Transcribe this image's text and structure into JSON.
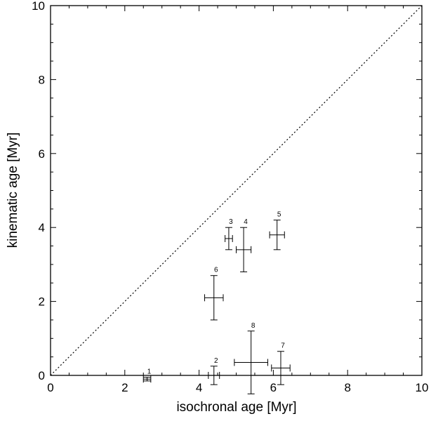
{
  "chart_data": {
    "type": "scatter",
    "title": "",
    "xlabel": "isochronal age [Myr]",
    "ylabel": "kinematic age  [Myr]",
    "xlim": [
      0,
      10
    ],
    "ylim": [
      0,
      10
    ],
    "xticks": [
      "0",
      "2",
      "4",
      "6",
      "8",
      "10"
    ],
    "yticks": [
      "0",
      "2",
      "4",
      "6",
      "8",
      "10"
    ],
    "grid": false,
    "reference_line": {
      "style": "dotted",
      "from": [
        0,
        0
      ],
      "to": [
        10,
        10
      ]
    },
    "points": [
      {
        "label": "1",
        "x": 2.6,
        "y": -0.1,
        "xerr": 0.1,
        "yerr": 0.05
      },
      {
        "label": "2",
        "x": 4.4,
        "y": 0.0,
        "xerr": 0.15,
        "yerr": 0.25
      },
      {
        "label": "3",
        "x": 4.8,
        "y": 3.7,
        "xerr": 0.1,
        "yerr": 0.3
      },
      {
        "label": "4",
        "x": 5.2,
        "y": 3.4,
        "xerr": 0.2,
        "yerr": 0.6
      },
      {
        "label": "5",
        "x": 6.1,
        "y": 3.8,
        "xerr": 0.2,
        "yerr": 0.4
      },
      {
        "label": "6",
        "x": 4.4,
        "y": 2.1,
        "xerr": 0.25,
        "yerr": 0.6
      },
      {
        "label": "7",
        "x": 6.2,
        "y": 0.2,
        "xerr": 0.25,
        "yerr": 0.45
      },
      {
        "label": "8",
        "x": 5.4,
        "y": 0.35,
        "xerr": 0.45,
        "yerr": 0.85
      }
    ]
  }
}
